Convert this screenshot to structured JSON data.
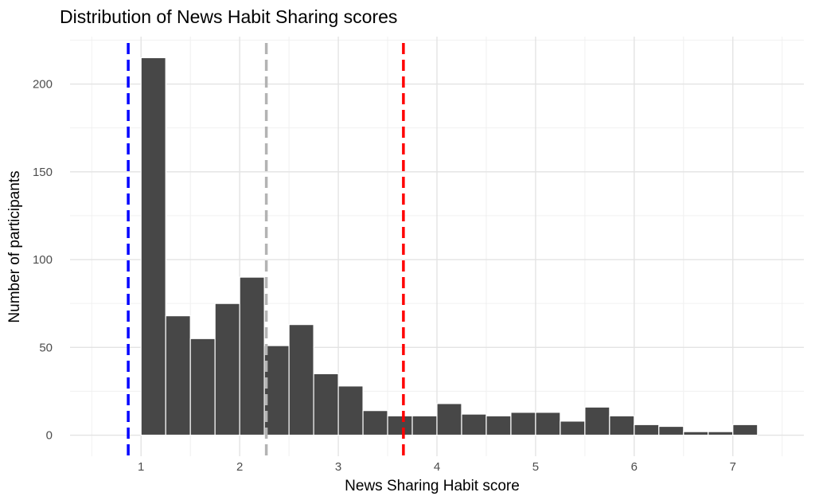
{
  "chart_data": {
    "type": "bar",
    "title": "Distribution of News Habit Sharing scores",
    "xlabel": "News Sharing Habit score",
    "ylabel": "Number of participants",
    "bin_width": 0.25,
    "bins": [
      {
        "x": 1.125,
        "count": 215
      },
      {
        "x": 1.375,
        "count": 68
      },
      {
        "x": 1.625,
        "count": 55
      },
      {
        "x": 1.875,
        "count": 75
      },
      {
        "x": 2.125,
        "count": 90
      },
      {
        "x": 2.375,
        "count": 51
      },
      {
        "x": 2.625,
        "count": 63
      },
      {
        "x": 2.875,
        "count": 35
      },
      {
        "x": 3.125,
        "count": 28
      },
      {
        "x": 3.375,
        "count": 14
      },
      {
        "x": 3.625,
        "count": 11
      },
      {
        "x": 3.875,
        "count": 11
      },
      {
        "x": 4.125,
        "count": 18
      },
      {
        "x": 4.375,
        "count": 12
      },
      {
        "x": 4.625,
        "count": 11
      },
      {
        "x": 4.875,
        "count": 13
      },
      {
        "x": 5.125,
        "count": 13
      },
      {
        "x": 5.375,
        "count": 8
      },
      {
        "x": 5.625,
        "count": 16
      },
      {
        "x": 5.875,
        "count": 11
      },
      {
        "x": 6.125,
        "count": 6
      },
      {
        "x": 6.375,
        "count": 5
      },
      {
        "x": 6.625,
        "count": 2
      },
      {
        "x": 6.875,
        "count": 2
      },
      {
        "x": 7.125,
        "count": 6
      }
    ],
    "reference_lines": [
      {
        "x": 0.87,
        "color": "#0000ff"
      },
      {
        "x": 2.27,
        "color": "#b3b3b3"
      },
      {
        "x": 3.66,
        "color": "#ff0000"
      }
    ],
    "xlim": [
      0.28,
      7.72
    ],
    "ylim": [
      -12,
      227
    ],
    "xticks": [
      1,
      2,
      3,
      4,
      5,
      6,
      7
    ],
    "yticks": [
      0,
      50,
      100,
      150,
      200
    ],
    "bar_color": "#474747",
    "bar_outline": "#ffffff",
    "grid": true,
    "legend": "none"
  }
}
